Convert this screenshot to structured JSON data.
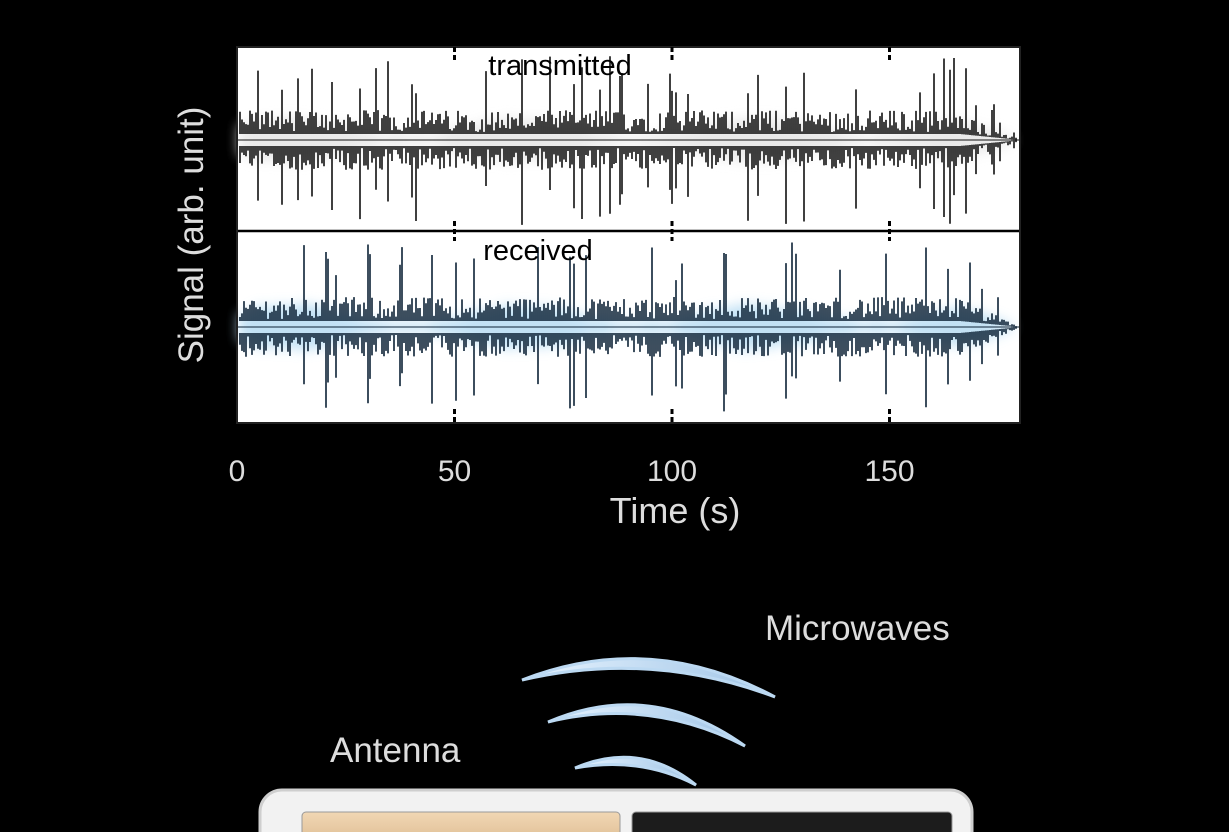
{
  "chart_data": {
    "type": "waveform",
    "xlabel": "Time (s)",
    "ylabel": "Signal (arb. unit)",
    "xlim": [
      0,
      180
    ],
    "xticks": [
      0,
      50,
      100,
      150
    ],
    "panels": [
      {
        "label": "transmitted",
        "color": "#111111",
        "glow": "#e8e8e8"
      },
      {
        "label": "received",
        "color": "#0d2236",
        "glow": "#bfe0f4"
      }
    ]
  },
  "illustration": {
    "waves_label": "Microwaves",
    "antenna_label": "Antenna"
  }
}
